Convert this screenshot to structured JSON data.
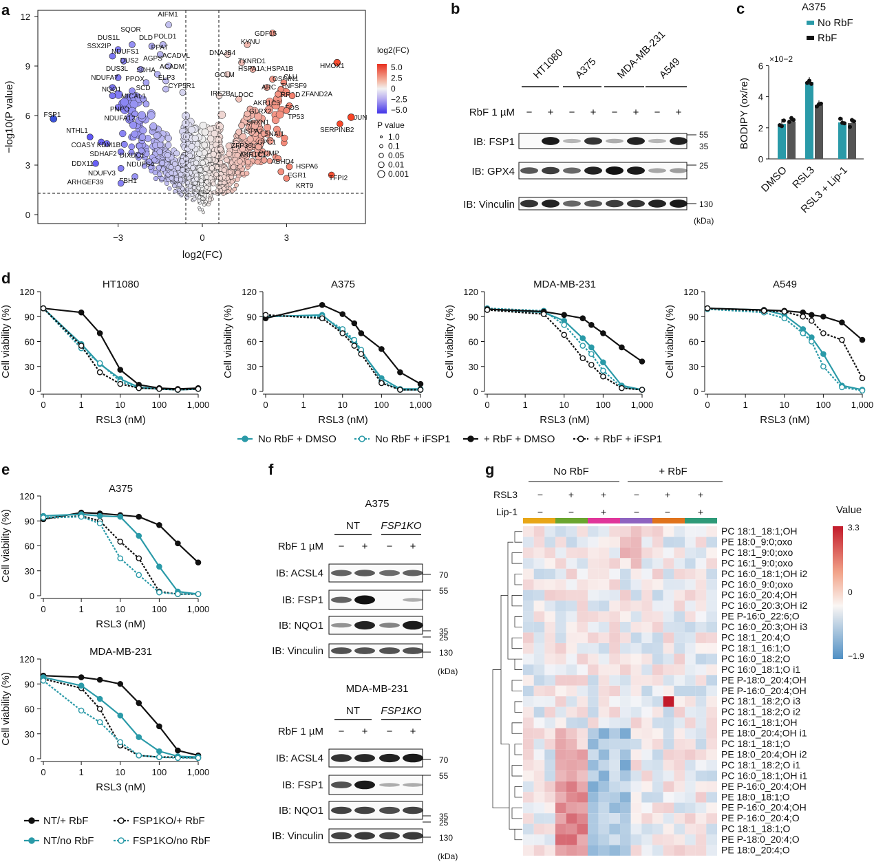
{
  "panels": {
    "a": "a",
    "b": "b",
    "c": "c",
    "d": "d",
    "e": "e",
    "f": "f",
    "g": "g"
  },
  "colors": {
    "teal": "#2a9aa8",
    "black": "#111111",
    "grey": "#555555",
    "red": "#c0282d",
    "blue": "#3a52d8"
  },
  "volcano": {
    "xlabel": "log2(FC)",
    "ylabel": "−log10(P value)",
    "xticks": [
      "−3",
      "0",
      "3"
    ],
    "yticks": [
      "0",
      "3",
      "6",
      "9",
      "12"
    ],
    "legend_fc_title": "log2(FC)",
    "legend_fc_ticks": [
      "5.0",
      "2.5",
      "0",
      "−2.5",
      "−5.0"
    ],
    "legend_p_title": "P value",
    "legend_p_ticks": [
      "1.0",
      "0.1",
      "0.05",
      "0.01",
      "0.001"
    ],
    "genes": [
      {
        "n": "AIFM1"
      },
      {
        "n": "SQOR"
      },
      {
        "n": "DUS1L"
      },
      {
        "n": "DLD"
      },
      {
        "n": "POLD1"
      },
      {
        "n": "SSX2IP"
      },
      {
        "n": "NDUFS1"
      },
      {
        "n": "PPAT"
      },
      {
        "n": "ACADVL"
      },
      {
        "n": "DUS2"
      },
      {
        "n": "AGPS"
      },
      {
        "n": "DUS3L"
      },
      {
        "n": "ACADM"
      },
      {
        "n": "SDHA"
      },
      {
        "n": "NDUFA7"
      },
      {
        "n": "PPOX"
      },
      {
        "n": "ELP3"
      },
      {
        "n": "CYP5R1"
      },
      {
        "n": "NQO1"
      },
      {
        "n": "SCD"
      },
      {
        "n": "MICAL1"
      },
      {
        "n": "PNPO"
      },
      {
        "n": "NDUFA12"
      },
      {
        "n": "FSP1"
      },
      {
        "n": "NTHL1"
      },
      {
        "n": "COASY"
      },
      {
        "n": "KDM1B"
      },
      {
        "n": "SDHAF2"
      },
      {
        "n": "DIXDC1"
      },
      {
        "n": "DDX11"
      },
      {
        "n": "NDUFS4"
      },
      {
        "n": "NDUFV3"
      },
      {
        "n": "FBH1"
      },
      {
        "n": "ARHGEF39"
      },
      {
        "n": "GDF15"
      },
      {
        "n": "KYNU"
      },
      {
        "n": "DNAJB4"
      },
      {
        "n": "TXNRD1"
      },
      {
        "n": "HSPA1A;HSPA1B"
      },
      {
        "n": "HMOX1"
      },
      {
        "n": "GCLM"
      },
      {
        "n": "OSGIN1"
      },
      {
        "n": "CLU"
      },
      {
        "n": "ARC"
      },
      {
        "n": "TNFSF9"
      },
      {
        "n": "RRAD"
      },
      {
        "n": "ZFAND2A"
      },
      {
        "n": "IRE2B"
      },
      {
        "n": "ALDOC"
      },
      {
        "n": "AKR1C3"
      },
      {
        "n": "FOS"
      },
      {
        "n": "GLRX2"
      },
      {
        "n": "TP53"
      },
      {
        "n": "JUN"
      },
      {
        "n": "SERPINB2"
      },
      {
        "n": "SRXN1"
      },
      {
        "n": "HSPA2"
      },
      {
        "n": "SNAI1"
      },
      {
        "n": "ZFP36L1"
      },
      {
        "n": "GPC1"
      },
      {
        "n": "AKR1C1"
      },
      {
        "n": "POMP"
      },
      {
        "n": "ABHD4"
      },
      {
        "n": "HSPA6"
      },
      {
        "n": "EGR1"
      },
      {
        "n": "TFPI2"
      },
      {
        "n": "KRT9"
      }
    ]
  },
  "blotB": {
    "cells": [
      "HT1080",
      "A375",
      "MDA-MB-231",
      "A549"
    ],
    "treat_label": "RbF 1 µM",
    "signs": [
      "−",
      "+",
      "−",
      "+",
      "−",
      "+",
      "−",
      "+"
    ],
    "rows": [
      "IB: FSP1",
      "IB: GPX4",
      "IB: Vinculin"
    ],
    "mw": [
      "55",
      "35",
      "25",
      "130",
      "(kDa)"
    ]
  },
  "barC": {
    "title": "A375",
    "legend": [
      "No RbF",
      "RbF"
    ],
    "exp": "×10−2",
    "ylabel": "BODIPY (ox/re)",
    "yticks": [
      "0",
      "2",
      "4",
      "6"
    ],
    "categories": [
      "DMSO",
      "RSL3",
      "RSL3 + Lip-1"
    ]
  },
  "doseD": {
    "titles": [
      "HT1080",
      "A375",
      "MDA-MB-231",
      "A549"
    ],
    "ylabel": "Cell viability (%)",
    "xlabel": "RSL3 (nM)",
    "yticks": [
      "0",
      "30",
      "60",
      "90",
      "120"
    ],
    "xticks": [
      "0",
      "1",
      "10",
      "100",
      "1,000"
    ],
    "legend": [
      "No RbF + DMSO",
      "No RbF + iFSP1",
      "+ RbF + DMSO",
      "+ RbF + iFSP1"
    ]
  },
  "doseE": {
    "titles": [
      "A375",
      "MDA-MB-231"
    ],
    "legend": [
      "NT/+ RbF",
      "FSP1KO/+ RbF",
      "NT/no RbF",
      "FSP1KO/no RbF"
    ]
  },
  "blotF": {
    "titles": [
      "A375",
      "MDA-MB-231"
    ],
    "groups": [
      "NT",
      "FSP1KO"
    ],
    "treat_label": "RbF 1 µM",
    "signs": [
      "−",
      "+",
      "−",
      "+"
    ],
    "rows": [
      "IB: ACSL4",
      "IB: FSP1",
      "IB: NQO1",
      "IB: Vinculin"
    ],
    "mw": [
      "70",
      "55",
      "35",
      "25",
      "130",
      "(kDa)"
    ]
  },
  "heatG": {
    "groups": [
      "No RbF",
      "+ RbF"
    ],
    "row_rsl3": "RSL3",
    "row_lip": "Lip-1",
    "rsl3_signs": [
      "−",
      "+",
      "+",
      "−",
      "+",
      "+"
    ],
    "lip_signs": [
      "−",
      "−",
      "+",
      "−",
      "−",
      "+"
    ],
    "value_title": "Value",
    "value_ticks": [
      "3.3",
      "0",
      "−1.9"
    ],
    "lipids": [
      "PC 18:1_18:1;OH",
      "PE 18:0_9:0;oxo",
      "PC 18:1_9:0;oxo",
      "PC 16:1_9:0;oxo",
      "PC 16:0_18:1;OH i2",
      "PC 16:0_9:0;oxo",
      "PC 16:0_20:4;OH",
      "PC 16:0_20:3;OH i2",
      "PE P-16:0_22:6;O",
      "PC 16:0_20:3;OH i3",
      "PC 18:1_20:4;O",
      "PC 18:1_16:1;O",
      "PC 16:0_18:2;O",
      "PC 16:0_18:1;O i1",
      "PE P-18:0_20:4;OH",
      "PE P-16:0_20:4;OH",
      "PC 18:1_18:2;O i3",
      "PC 18:1_18:2;O i2",
      "PC 16:1_18:1;OH",
      "PE 18:0_20:4;OH i1",
      "PC 18:1_18:1;O",
      "PE 18:0_20:4;OH i2",
      "PC 18:1_18:2;O i1",
      "PC 16:0_18:1;OH i1",
      "PE P-16:0_20:4;OH",
      "PE 18:0_18:1;O",
      "PE P-16:0_20:4;OH",
      "PE P-16:0_20:4;O",
      "PC 18:1_18:1;O",
      "PE P-18:0_20:4;O",
      "PE 18:0_20:4;O"
    ]
  },
  "chart_data": [
    {
      "type": "bar",
      "title": "A375",
      "ylabel": "BODIPY (ox/re)",
      "ylim": [
        0,
        6
      ],
      "categories": [
        "DMSO",
        "RSL3",
        "RSL3 + Lip-1"
      ],
      "series": [
        {
          "name": "No RbF",
          "values": [
            2.25,
            4.95,
            2.35
          ],
          "color": "#2a9aa8"
        },
        {
          "name": "RbF",
          "values": [
            2.4,
            3.45,
            2.3
          ],
          "color": "#555555"
        }
      ]
    },
    {
      "type": "line",
      "title": "HT1080",
      "xlabel": "RSL3 (nM)",
      "ylabel": "Cell viability (%)",
      "ylim": [
        0,
        120
      ],
      "x": [
        0,
        1,
        3,
        10,
        30,
        100,
        300,
        1000
      ],
      "series": [
        {
          "name": "No RbF + DMSO",
          "values": [
            100,
            57,
            33,
            15,
            5,
            3,
            2,
            3
          ]
        },
        {
          "name": "No RbF + iFSP1",
          "values": [
            100,
            52,
            34,
            12,
            4,
            3,
            2,
            3
          ]
        },
        {
          "name": "+ RbF + DMSO",
          "values": [
            100,
            95,
            70,
            26,
            8,
            4,
            3,
            4
          ]
        },
        {
          "name": "+ RbF + iFSP1",
          "values": [
            100,
            55,
            23,
            9,
            4,
            3,
            2,
            3
          ]
        }
      ]
    },
    {
      "type": "line",
      "title": "A375",
      "xlabel": "RSL3 (nM)",
      "ylabel": "Cell viability (%)",
      "ylim": [
        0,
        120
      ],
      "x": [
        0,
        3,
        10,
        20,
        30,
        100,
        300,
        1000
      ],
      "series": [
        {
          "name": "No RbF + DMSO",
          "values": [
            90,
            92,
            72,
            60,
            48,
            16,
            3,
            3
          ]
        },
        {
          "name": "No RbF + iFSP1",
          "values": [
            91,
            90,
            75,
            62,
            50,
            12,
            2,
            2
          ]
        },
        {
          "name": "+ RbF + DMSO",
          "values": [
            88,
            104,
            93,
            82,
            70,
            51,
            23,
            9
          ]
        },
        {
          "name": "+ RbF + iFSP1",
          "values": [
            92,
            88,
            70,
            55,
            45,
            10,
            2,
            2
          ]
        }
      ]
    },
    {
      "type": "line",
      "title": "MDA-MB-231",
      "xlabel": "RSL3 (nM)",
      "ylabel": "Cell viability (%)",
      "ylim": [
        0,
        120
      ],
      "x": [
        0,
        3,
        10,
        30,
        50,
        100,
        300,
        1000
      ],
      "series": [
        {
          "name": "No RbF + DMSO",
          "values": [
            99,
            95,
            85,
            64,
            53,
            35,
            7,
            2
          ]
        },
        {
          "name": "No RbF + iFSP1",
          "values": [
            100,
            97,
            80,
            55,
            45,
            25,
            5,
            2
          ]
        },
        {
          "name": "+ RbF + DMSO",
          "values": [
            99,
            96,
            92,
            88,
            80,
            70,
            53,
            36
          ]
        },
        {
          "name": "+ RbF + iFSP1",
          "values": [
            98,
            93,
            68,
            40,
            32,
            18,
            4,
            2
          ]
        }
      ]
    },
    {
      "type": "line",
      "title": "A549",
      "xlabel": "RSL3 (nM)",
      "ylabel": "Cell viability (%)",
      "ylim": [
        0,
        120
      ],
      "x": [
        0,
        3,
        10,
        30,
        50,
        100,
        300,
        1000
      ],
      "series": [
        {
          "name": "No RbF + DMSO",
          "values": [
            100,
            98,
            92,
            75,
            65,
            45,
            7,
            2
          ]
        },
        {
          "name": "No RbF + iFSP1",
          "values": [
            99,
            95,
            88,
            70,
            60,
            30,
            5,
            1
          ]
        },
        {
          "name": "+ RbF + DMSO",
          "values": [
            100,
            98,
            97,
            95,
            92,
            90,
            83,
            62
          ]
        },
        {
          "name": "+ RbF + iFSP1",
          "values": [
            100,
            97,
            96,
            90,
            85,
            70,
            62,
            16
          ]
        }
      ]
    },
    {
      "type": "line",
      "title": "A375",
      "xlabel": "RSL3 (nM)",
      "ylabel": "Cell viability (%)",
      "ylim": [
        0,
        120
      ],
      "x": [
        0,
        1,
        3,
        10,
        30,
        100,
        300,
        1000
      ],
      "series": [
        {
          "name": "NT/+ RbF",
          "values": [
            92,
            100,
            99,
            97,
            95,
            85,
            63,
            40
          ]
        },
        {
          "name": "FSP1KO/+ RbF",
          "values": [
            93,
            96,
            90,
            65,
            45,
            5,
            2,
            2
          ]
        },
        {
          "name": "NT/no RbF",
          "values": [
            96,
            98,
            96,
            95,
            72,
            35,
            5,
            2
          ]
        },
        {
          "name": "FSP1KO/no RbF",
          "values": [
            94,
            95,
            87,
            45,
            25,
            4,
            2,
            2
          ]
        }
      ]
    },
    {
      "type": "line",
      "title": "MDA-MB-231",
      "xlabel": "RSL3 (nM)",
      "ylabel": "Cell viability (%)",
      "ylim": [
        0,
        120
      ],
      "x": [
        0,
        1,
        3,
        10,
        30,
        100,
        300,
        1000
      ],
      "series": [
        {
          "name": "NT/+ RbF",
          "values": [
            100,
            98,
            95,
            90,
            67,
            39,
            10,
            4
          ]
        },
        {
          "name": "FSP1KO/+ RbF",
          "values": [
            96,
            85,
            60,
            16,
            4,
            2,
            2,
            1
          ]
        },
        {
          "name": "NT/no RbF",
          "values": [
            98,
            88,
            72,
            52,
            26,
            9,
            3,
            2
          ]
        },
        {
          "name": "FSP1KO/no RbF",
          "values": [
            94,
            58,
            44,
            20,
            4,
            2,
            1,
            1
          ]
        }
      ]
    }
  ]
}
